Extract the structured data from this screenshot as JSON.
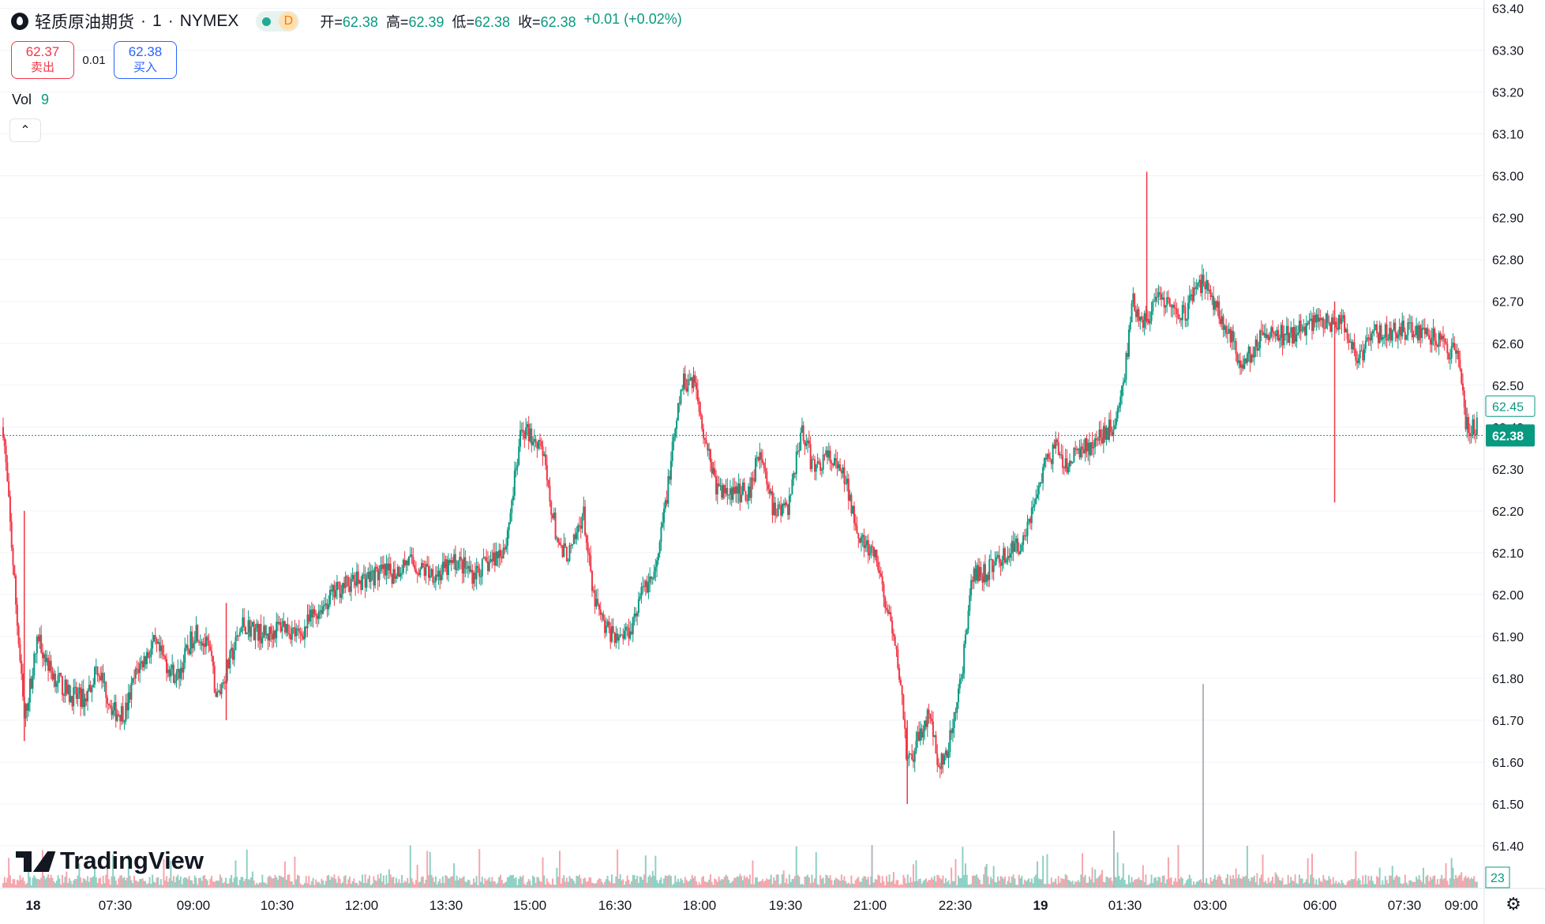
{
  "legend": {
    "symbol_name": "轻质原油期货",
    "interval": "1",
    "exchange": "NYMEX",
    "separator": "·",
    "status_icon": "market-open-dot",
    "period_badge": "D",
    "ohlc": [
      {
        "key": "开=",
        "value": "62.38"
      },
      {
        "key": "高=",
        "value": "62.39"
      },
      {
        "key": "低=",
        "value": "62.38"
      },
      {
        "key": "收=",
        "value": "62.38"
      }
    ],
    "change": "+0.01 (+0.02%)"
  },
  "trade": {
    "sell_price": "62.37",
    "sell_label": "卖出",
    "spread": "0.01",
    "buy_price": "62.38",
    "buy_label": "买入"
  },
  "volume_legend": {
    "label": "Vol",
    "value": "9"
  },
  "collapse_icon": "chevron-up-icon",
  "logo_text": "TradingView",
  "settings_icon": "gear-icon",
  "colors": {
    "up": "#089981",
    "down": "#f23645",
    "vol_up": "#8fd0c4",
    "vol_down": "#f5a6ad",
    "grid": "#f0f3fa",
    "last_price": "#089981"
  },
  "chart_data": {
    "type": "candlestick",
    "symbol": "轻质原油期货",
    "interval_minutes": 1,
    "y_axis": {
      "range": [
        61.3,
        63.42
      ],
      "ticks": [
        "61.40",
        "61.50",
        "61.60",
        "61.70",
        "61.80",
        "61.90",
        "62.00",
        "62.10",
        "62.20",
        "62.30",
        "62.40",
        "62.50",
        "62.60",
        "62.70",
        "62.80",
        "62.90",
        "63.00",
        "63.10",
        "63.20",
        "63.30",
        "63.40"
      ],
      "price_labels": {
        "bid_ask_marker": "62.45",
        "last_price": "62.38"
      },
      "volume_label": "23"
    },
    "x_axis": {
      "tick_labels": [
        "18",
        "07:30",
        "09:00",
        "10:30",
        "12:00",
        "13:30",
        "15:00",
        "16:30",
        "18:00",
        "19:30",
        "21:00",
        "22:30",
        "19",
        "01:30",
        "03:00",
        "06:00",
        "07:30",
        "09:00"
      ],
      "bold_ticks": [
        "18",
        "19"
      ]
    },
    "price_path": [
      [
        0,
        62.4
      ],
      [
        45,
        61.7
      ],
      [
        75,
        61.9
      ],
      [
        100,
        61.82
      ],
      [
        140,
        61.76
      ],
      [
        175,
        61.75
      ],
      [
        200,
        61.83
      ],
      [
        235,
        61.72
      ],
      [
        260,
        61.72
      ],
      [
        285,
        61.82
      ],
      [
        320,
        61.88
      ],
      [
        370,
        61.8
      ],
      [
        410,
        61.92
      ],
      [
        440,
        61.86
      ],
      [
        455,
        61.75
      ],
      [
        470,
        61.8
      ],
      [
        510,
        61.93
      ],
      [
        560,
        61.9
      ],
      [
        595,
        61.93
      ],
      [
        630,
        61.9
      ],
      [
        660,
        61.95
      ],
      [
        720,
        62.02
      ],
      [
        800,
        62.05
      ],
      [
        830,
        62.05
      ],
      [
        860,
        62.08
      ],
      [
        890,
        62.06
      ],
      [
        930,
        62.05
      ],
      [
        965,
        62.08
      ],
      [
        1000,
        62.05
      ],
      [
        1040,
        62.08
      ],
      [
        1070,
        62.12
      ],
      [
        1105,
        62.4
      ],
      [
        1130,
        62.37
      ],
      [
        1145,
        62.37
      ],
      [
        1160,
        62.25
      ],
      [
        1185,
        62.1
      ],
      [
        1210,
        62.1
      ],
      [
        1235,
        62.2
      ],
      [
        1255,
        62.0
      ],
      [
        1280,
        61.92
      ],
      [
        1310,
        61.9
      ],
      [
        1335,
        61.92
      ],
      [
        1365,
        62.02
      ],
      [
        1390,
        62.05
      ],
      [
        1420,
        62.3
      ],
      [
        1445,
        62.5
      ],
      [
        1470,
        62.52
      ],
      [
        1490,
        62.4
      ],
      [
        1520,
        62.25
      ],
      [
        1555,
        62.24
      ],
      [
        1590,
        62.25
      ],
      [
        1610,
        62.35
      ],
      [
        1640,
        62.2
      ],
      [
        1670,
        62.2
      ],
      [
        1700,
        62.4
      ],
      [
        1725,
        62.3
      ],
      [
        1755,
        62.33
      ],
      [
        1790,
        62.28
      ],
      [
        1830,
        62.12
      ],
      [
        1860,
        62.08
      ],
      [
        1890,
        61.92
      ],
      [
        1910,
        61.8
      ],
      [
        1925,
        61.6
      ],
      [
        1935,
        61.6
      ],
      [
        1955,
        61.68
      ],
      [
        1975,
        61.72
      ],
      [
        1990,
        61.58
      ],
      [
        2010,
        61.62
      ],
      [
        2025,
        61.7
      ],
      [
        2045,
        61.85
      ],
      [
        2065,
        62.05
      ],
      [
        2090,
        62.05
      ],
      [
        2115,
        62.08
      ],
      [
        2140,
        62.1
      ],
      [
        2165,
        62.12
      ],
      [
        2190,
        62.2
      ],
      [
        2215,
        62.3
      ],
      [
        2240,
        62.35
      ],
      [
        2265,
        62.3
      ],
      [
        2290,
        62.35
      ],
      [
        2310,
        62.35
      ],
      [
        2335,
        62.37
      ],
      [
        2360,
        62.4
      ],
      [
        2385,
        62.5
      ],
      [
        2405,
        62.7
      ],
      [
        2415,
        62.68
      ],
      [
        2430,
        62.65
      ],
      [
        2460,
        62.7
      ],
      [
        2490,
        62.68
      ],
      [
        2520,
        62.67
      ],
      [
        2545,
        62.75
      ],
      [
        2570,
        62.72
      ],
      [
        2600,
        62.65
      ],
      [
        2625,
        62.58
      ],
      [
        2645,
        62.55
      ],
      [
        2665,
        62.6
      ],
      [
        2700,
        62.62
      ],
      [
        2740,
        62.62
      ],
      [
        2780,
        62.65
      ],
      [
        2820,
        62.65
      ],
      [
        2850,
        62.65
      ],
      [
        2870,
        62.6
      ],
      [
        2885,
        62.55
      ],
      [
        2910,
        62.62
      ],
      [
        2945,
        62.63
      ],
      [
        2980,
        62.63
      ],
      [
        3020,
        62.63
      ],
      [
        3060,
        62.6
      ],
      [
        3085,
        62.58
      ],
      [
        3100,
        62.57
      ],
      [
        3115,
        62.4
      ],
      [
        3140,
        62.4
      ]
    ],
    "spikes": [
      {
        "minute": 45,
        "high": 62.2,
        "low": 61.65
      },
      {
        "minute": 475,
        "high": 61.98,
        "low": 61.7
      },
      {
        "minute": 1925,
        "high": 61.7,
        "low": 61.5
      },
      {
        "minute": 2435,
        "high": 63.01,
        "low": 62.65
      },
      {
        "minute": 2835,
        "high": 62.7,
        "low": 62.22
      }
    ],
    "volume_spikes": [
      {
        "minute": 2555,
        "volume": 430
      },
      {
        "minute": 2365,
        "volume": 120
      },
      {
        "minute": 1850,
        "volume": 90
      }
    ],
    "last_price": 62.38
  }
}
